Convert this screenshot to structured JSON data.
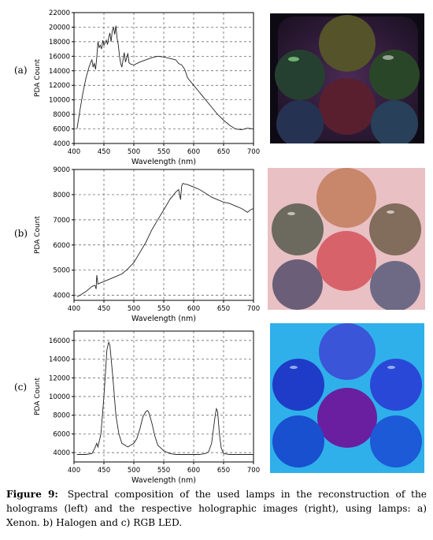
{
  "panels": [
    {
      "label": "(a)"
    },
    {
      "label": "(b)"
    },
    {
      "label": "(c)"
    }
  ],
  "chart_data": [
    {
      "type": "line",
      "panel": "(a)",
      "xlabel": "Wavelength (nm)",
      "ylabel": "PDA Count",
      "xlim": [
        400,
        700
      ],
      "ylim": [
        4000,
        22000
      ],
      "xticks": [
        400,
        450,
        500,
        550,
        600,
        650,
        700
      ],
      "yticks": [
        4000,
        6000,
        8000,
        10000,
        12000,
        14000,
        16000,
        18000,
        20000,
        22000
      ],
      "grid": true,
      "series": [
        {
          "x": [
            405,
            410,
            415,
            420,
            425,
            428,
            430,
            432,
            434,
            436,
            438,
            440,
            442,
            444,
            446,
            448,
            450,
            452,
            454,
            456,
            458,
            460,
            462,
            464,
            466,
            468,
            470,
            472,
            474,
            476,
            478,
            480,
            482,
            484,
            486,
            488,
            490,
            492,
            495,
            500,
            510,
            520,
            530,
            540,
            550,
            560,
            570,
            575,
            580,
            585,
            590,
            600,
            610,
            620,
            630,
            640,
            650,
            660,
            670,
            680,
            690,
            700
          ],
          "y": [
            6000,
            8600,
            11000,
            13000,
            14500,
            15200,
            15500,
            14500,
            15000,
            14200,
            15800,
            18000,
            17200,
            17500,
            17000,
            18200,
            17500,
            17800,
            18200,
            17600,
            18600,
            19200,
            18000,
            19500,
            20000,
            19000,
            20200,
            18500,
            17600,
            16000,
            15000,
            14500,
            15500,
            16500,
            15200,
            15800,
            16400,
            15100,
            14900,
            14800,
            15200,
            15500,
            15800,
            16000,
            15900,
            15700,
            15500,
            15000,
            14800,
            14200,
            13000,
            12000,
            11000,
            10000,
            9000,
            8000,
            7200,
            6500,
            6000,
            5900,
            6100,
            6000
          ]
        }
      ]
    },
    {
      "type": "line",
      "panel": "(b)",
      "xlabel": "Wavelength (nm)",
      "ylabel": "PDA Count",
      "xlim": [
        400,
        700
      ],
      "ylim": [
        3800,
        9000
      ],
      "xticks": [
        400,
        450,
        500,
        550,
        600,
        650,
        700
      ],
      "yticks": [
        4000,
        5000,
        6000,
        7000,
        8000,
        9000
      ],
      "grid": true,
      "series": [
        {
          "x": [
            405,
            410,
            420,
            430,
            435,
            437,
            438,
            440,
            445,
            450,
            460,
            470,
            480,
            490,
            500,
            510,
            520,
            530,
            540,
            550,
            560,
            570,
            575,
            578,
            580,
            582,
            585,
            590,
            600,
            610,
            620,
            630,
            640,
            650,
            660,
            670,
            680,
            690,
            695,
            700
          ],
          "y": [
            3950,
            4000,
            4150,
            4350,
            4400,
            4250,
            4800,
            4450,
            4500,
            4550,
            4650,
            4750,
            4850,
            5050,
            5300,
            5700,
            6100,
            6600,
            7000,
            7400,
            7800,
            8100,
            8200,
            7800,
            8350,
            8450,
            8420,
            8400,
            8300,
            8200,
            8050,
            7900,
            7800,
            7700,
            7650,
            7550,
            7450,
            7300,
            7400,
            7450
          ]
        }
      ]
    },
    {
      "type": "line",
      "panel": "(c)",
      "xlabel": "Wavelength (nm)",
      "ylabel": "PDA Count",
      "xlim": [
        400,
        700
      ],
      "ylim": [
        3000,
        17000
      ],
      "xticks": [
        400,
        450,
        500,
        550,
        600,
        650,
        700
      ],
      "yticks": [
        4000,
        6000,
        8000,
        10000,
        12000,
        14000,
        16000
      ],
      "grid": true,
      "series": [
        {
          "x": [
            405,
            420,
            430,
            435,
            438,
            440,
            445,
            450,
            455,
            458,
            460,
            465,
            470,
            475,
            480,
            490,
            500,
            505,
            510,
            515,
            520,
            523,
            525,
            530,
            535,
            540,
            550,
            560,
            570,
            580,
            590,
            600,
            610,
            620,
            625,
            630,
            633,
            636,
            638,
            640,
            643,
            646,
            650,
            660,
            670,
            680,
            690,
            700
          ],
          "y": [
            3800,
            3800,
            3900,
            4500,
            5000,
            4600,
            6000,
            10000,
            15000,
            15800,
            15500,
            12000,
            8000,
            6000,
            5000,
            4600,
            5000,
            5500,
            6500,
            7800,
            8400,
            8500,
            8300,
            7200,
            5800,
            4800,
            4200,
            3900,
            3800,
            3800,
            3800,
            3800,
            3800,
            3900,
            4100,
            5000,
            6500,
            8000,
            8700,
            8400,
            6000,
            4500,
            3900,
            3800,
            3800,
            3800,
            3800,
            3800
          ]
        }
      ]
    }
  ],
  "caption": {
    "label": "Figure 9:",
    "text": "Spectral composition of the used lamps in the reconstruction of the holograms (left) and the respective holographic images (right), using lamps: a) Xenon. b) Halogen and c) RGB LED."
  }
}
